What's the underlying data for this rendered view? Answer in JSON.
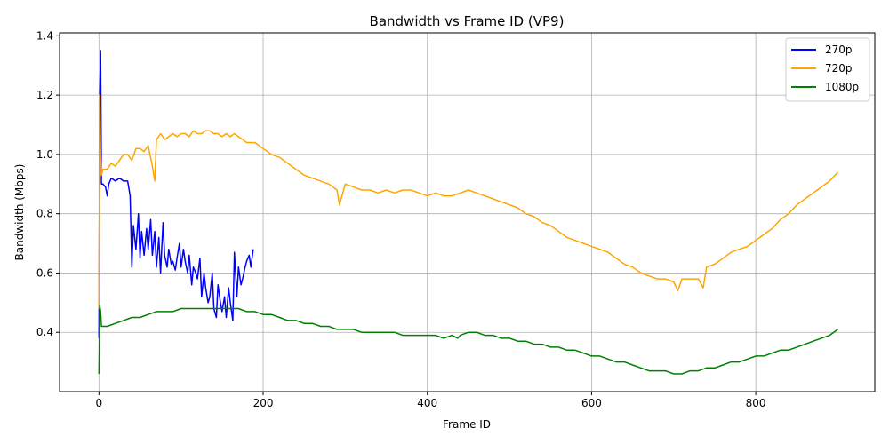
{
  "chart_data": {
    "type": "line",
    "title": "Bandwidth vs Frame ID (VP9)",
    "xlabel": "Frame ID",
    "ylabel": "Bandwidth (Mbps)",
    "xlim": [
      -48,
      945
    ],
    "ylim": [
      0.2,
      1.41
    ],
    "xticks": [
      0,
      200,
      400,
      600,
      800
    ],
    "yticks": [
      0.4,
      0.6,
      0.8,
      1.0,
      1.2,
      1.4
    ],
    "xtick_labels": [
      "0",
      "200",
      "400",
      "600",
      "800"
    ],
    "ytick_labels": [
      "0.4",
      "0.6",
      "0.8",
      "1.0",
      "1.2",
      "1.4"
    ],
    "grid": true,
    "legend_position": "top-right",
    "series": [
      {
        "name": "270p",
        "color": "#0000ff",
        "x": [
          0,
          1,
          2,
          3,
          5,
          8,
          10,
          12,
          15,
          20,
          25,
          30,
          35,
          38,
          40,
          42,
          45,
          48,
          50,
          52,
          55,
          58,
          60,
          63,
          65,
          68,
          70,
          73,
          75,
          78,
          80,
          83,
          85,
          88,
          90,
          93,
          95,
          98,
          100,
          103,
          105,
          108,
          110,
          113,
          115,
          118,
          120,
          123,
          125,
          128,
          130,
          133,
          135,
          138,
          140,
          143,
          145,
          148,
          150,
          153,
          155,
          158,
          160,
          163,
          165,
          168,
          170,
          173,
          175,
          178,
          180,
          183,
          185,
          188
        ],
        "values": [
          0.38,
          1.2,
          1.35,
          0.9,
          0.9,
          0.89,
          0.86,
          0.9,
          0.92,
          0.91,
          0.92,
          0.91,
          0.91,
          0.86,
          0.62,
          0.76,
          0.68,
          0.8,
          0.65,
          0.74,
          0.66,
          0.75,
          0.68,
          0.78,
          0.66,
          0.74,
          0.62,
          0.72,
          0.6,
          0.77,
          0.66,
          0.62,
          0.68,
          0.63,
          0.64,
          0.61,
          0.65,
          0.7,
          0.62,
          0.68,
          0.64,
          0.6,
          0.66,
          0.56,
          0.62,
          0.6,
          0.58,
          0.65,
          0.52,
          0.6,
          0.55,
          0.5,
          0.52,
          0.6,
          0.48,
          0.45,
          0.56,
          0.5,
          0.47,
          0.52,
          0.45,
          0.55,
          0.5,
          0.44,
          0.67,
          0.52,
          0.62,
          0.56,
          0.58,
          0.62,
          0.64,
          0.66,
          0.62,
          0.68
        ]
      },
      {
        "name": "720p",
        "color": "#ffa500",
        "x": [
          0,
          1,
          2,
          3,
          5,
          10,
          15,
          20,
          25,
          30,
          35,
          40,
          45,
          50,
          55,
          60,
          65,
          68,
          70,
          75,
          80,
          85,
          90,
          95,
          100,
          105,
          110,
          115,
          120,
          125,
          130,
          135,
          140,
          145,
          150,
          155,
          160,
          165,
          170,
          175,
          180,
          190,
          200,
          210,
          220,
          230,
          240,
          250,
          260,
          270,
          280,
          290,
          293,
          300,
          310,
          320,
          330,
          340,
          350,
          360,
          370,
          380,
          390,
          400,
          410,
          420,
          430,
          440,
          450,
          460,
          470,
          480,
          490,
          500,
          510,
          520,
          530,
          540,
          550,
          560,
          570,
          580,
          590,
          600,
          610,
          620,
          630,
          640,
          650,
          660,
          670,
          680,
          690,
          700,
          705,
          710,
          720,
          730,
          736,
          740,
          750,
          760,
          770,
          780,
          790,
          800,
          810,
          820,
          830,
          840,
          850,
          860,
          870,
          880,
          890,
          900
        ],
        "values": [
          0.48,
          1.2,
          1.0,
          0.93,
          0.95,
          0.95,
          0.97,
          0.96,
          0.98,
          1.0,
          1.0,
          0.98,
          1.02,
          1.02,
          1.01,
          1.03,
          0.96,
          0.91,
          1.05,
          1.07,
          1.05,
          1.06,
          1.07,
          1.06,
          1.07,
          1.07,
          1.06,
          1.08,
          1.07,
          1.07,
          1.08,
          1.08,
          1.07,
          1.07,
          1.06,
          1.07,
          1.06,
          1.07,
          1.06,
          1.05,
          1.04,
          1.04,
          1.02,
          1.0,
          0.99,
          0.97,
          0.95,
          0.93,
          0.92,
          0.91,
          0.9,
          0.88,
          0.83,
          0.9,
          0.89,
          0.88,
          0.88,
          0.87,
          0.88,
          0.87,
          0.88,
          0.88,
          0.87,
          0.86,
          0.87,
          0.86,
          0.86,
          0.87,
          0.88,
          0.87,
          0.86,
          0.85,
          0.84,
          0.83,
          0.82,
          0.8,
          0.79,
          0.77,
          0.76,
          0.74,
          0.72,
          0.71,
          0.7,
          0.69,
          0.68,
          0.67,
          0.65,
          0.63,
          0.62,
          0.6,
          0.59,
          0.58,
          0.58,
          0.57,
          0.54,
          0.58,
          0.58,
          0.58,
          0.55,
          0.62,
          0.63,
          0.65,
          0.67,
          0.68,
          0.69,
          0.71,
          0.73,
          0.75,
          0.78,
          0.8,
          0.83,
          0.85,
          0.87,
          0.89,
          0.91,
          0.94
        ]
      },
      {
        "name": "1080p",
        "color": "#008000",
        "x": [
          0,
          1,
          2,
          3,
          5,
          10,
          20,
          30,
          40,
          50,
          60,
          70,
          80,
          90,
          100,
          110,
          120,
          130,
          140,
          150,
          160,
          170,
          180,
          190,
          200,
          210,
          220,
          230,
          240,
          250,
          260,
          270,
          280,
          290,
          300,
          310,
          320,
          330,
          340,
          350,
          360,
          370,
          380,
          390,
          400,
          410,
          420,
          430,
          437,
          440,
          450,
          460,
          470,
          480,
          490,
          500,
          510,
          520,
          530,
          540,
          550,
          560,
          570,
          580,
          590,
          600,
          610,
          620,
          630,
          640,
          650,
          660,
          670,
          680,
          690,
          700,
          710,
          720,
          730,
          740,
          750,
          760,
          770,
          780,
          790,
          800,
          810,
          820,
          830,
          840,
          850,
          860,
          870,
          880,
          890,
          900
        ],
        "values": [
          0.26,
          0.49,
          0.47,
          0.42,
          0.42,
          0.42,
          0.43,
          0.44,
          0.45,
          0.45,
          0.46,
          0.47,
          0.47,
          0.47,
          0.48,
          0.48,
          0.48,
          0.48,
          0.48,
          0.48,
          0.48,
          0.48,
          0.47,
          0.47,
          0.46,
          0.46,
          0.45,
          0.44,
          0.44,
          0.43,
          0.43,
          0.42,
          0.42,
          0.41,
          0.41,
          0.41,
          0.4,
          0.4,
          0.4,
          0.4,
          0.4,
          0.39,
          0.39,
          0.39,
          0.39,
          0.39,
          0.38,
          0.39,
          0.38,
          0.39,
          0.4,
          0.4,
          0.39,
          0.39,
          0.38,
          0.38,
          0.37,
          0.37,
          0.36,
          0.36,
          0.35,
          0.35,
          0.34,
          0.34,
          0.33,
          0.32,
          0.32,
          0.31,
          0.3,
          0.3,
          0.29,
          0.28,
          0.27,
          0.27,
          0.27,
          0.26,
          0.26,
          0.27,
          0.27,
          0.28,
          0.28,
          0.29,
          0.3,
          0.3,
          0.31,
          0.32,
          0.32,
          0.33,
          0.34,
          0.34,
          0.35,
          0.36,
          0.37,
          0.38,
          0.39,
          0.41
        ]
      }
    ]
  }
}
